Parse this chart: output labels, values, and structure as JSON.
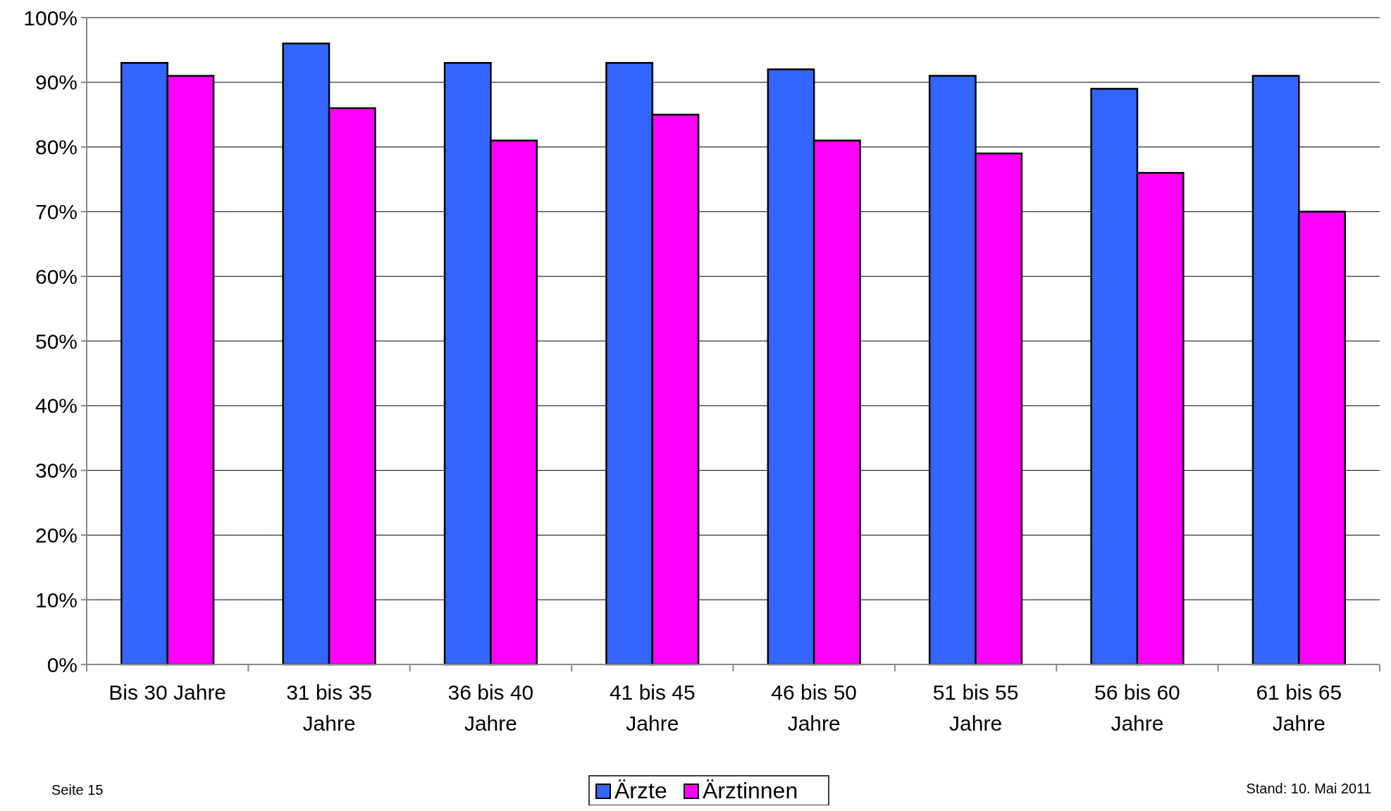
{
  "chart_data": {
    "type": "bar",
    "categories": [
      "Bis 30 Jahre",
      "31 bis 35 Jahre",
      "36 bis 40 Jahre",
      "41 bis 45 Jahre",
      "46 bis 50 Jahre",
      "51 bis 55 Jahre",
      "56 bis 60 Jahre",
      "61 bis 65 Jahre"
    ],
    "series": [
      {
        "name": "Ärzte",
        "color": "#3366ff",
        "values": [
          93,
          96,
          93,
          93,
          92,
          91,
          89,
          91
        ]
      },
      {
        "name": "Ärztinnen",
        "color": "#ff00ff",
        "values": [
          91,
          86,
          81,
          85,
          81,
          79,
          76,
          70
        ]
      }
    ],
    "ylim": [
      0,
      100
    ],
    "yticks": [
      {
        "value": 0,
        "label": "0%"
      },
      {
        "value": 10,
        "label": "10%"
      },
      {
        "value": 20,
        "label": "20%"
      },
      {
        "value": 30,
        "label": "30%"
      },
      {
        "value": 40,
        "label": "40%"
      },
      {
        "value": 50,
        "label": "50%"
      },
      {
        "value": 60,
        "label": "60%"
      },
      {
        "value": 70,
        "label": "70%"
      },
      {
        "value": 80,
        "label": "80%"
      },
      {
        "value": 90,
        "label": "90%"
      },
      {
        "value": 100,
        "label": "100%"
      }
    ],
    "grid": "y",
    "legend": "bottom",
    "annotations": [
      "Seite 15",
      "Stand: 10. Mai 2011"
    ]
  }
}
